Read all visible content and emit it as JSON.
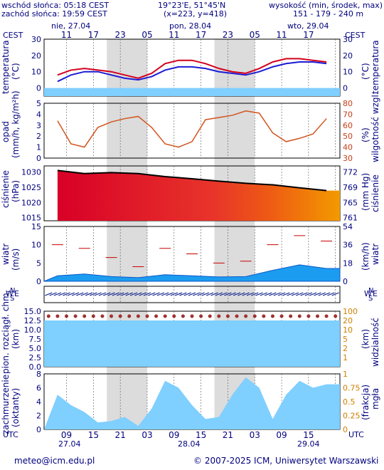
{
  "header": {
    "sunrise": "wschód słońca: 05:18 CEST",
    "sunset": "zachód słońca: 19:59 CEST",
    "coords": "19°23'E, 51°45'N",
    "grid": "(x=223, y=418)",
    "height_title": "wysokość (min, środek, max)",
    "height_values": "151 - 179 - 240 m"
  },
  "top_axis": {
    "tz": "CEST",
    "days": [
      "nie, 27.04",
      "pon, 28.04",
      "wto, 29.04"
    ],
    "hours": [
      "11",
      "17",
      "23",
      "05",
      "11",
      "17",
      "23",
      "05",
      "11",
      "17"
    ]
  },
  "bottom_axis": {
    "tz": "UTC",
    "days": [
      "27.04",
      "28.04",
      "29.04"
    ],
    "hours": [
      "09",
      "15",
      "21",
      "03",
      "09",
      "15",
      "21",
      "03",
      "09",
      "15"
    ]
  },
  "footer": {
    "email": "meteo@icm.edu.pl",
    "copyright": "© 2007-2025 ICM, Uniwersytet Warszawski"
  },
  "panels": {
    "temperature": {
      "left_label": "temperatura",
      "left_unit": "(°C)",
      "right_label": "temperatura",
      "right_unit": "(°C)",
      "ticks": [
        "30",
        "20",
        "10",
        "0"
      ]
    },
    "precip": {
      "left_label": "opad",
      "left_unit": "(mm/h, kg/m²h)",
      "right_label": "wilgotność wzgl.",
      "right_unit": "(%)",
      "left_ticks": [
        "5",
        "4",
        "3",
        "2",
        "1",
        "0"
      ],
      "right_ticks": [
        "80",
        "70",
        "60",
        "50",
        "40",
        "30"
      ]
    },
    "pressure": {
      "left_label": "ciśnienie",
      "left_unit": "(hPa)",
      "right_label": "ciśnienie",
      "right_unit": "(mm Hg)",
      "left_ticks": [
        "1030",
        "1025",
        "1020",
        "1015"
      ],
      "right_ticks": [
        "772",
        "769",
        "765",
        "761"
      ]
    },
    "wind": {
      "left_label": "wiatr",
      "left_unit": "(m/s)",
      "right_label": "wiatr",
      "right_unit": "(km/h)",
      "left_ticks": [
        "15",
        "10",
        "5",
        "0"
      ],
      "right_ticks": [
        "54",
        "36",
        "18",
        "0"
      ]
    },
    "winddir": {
      "compass_n": "N",
      "compass_s": "S",
      "compass_w": "W",
      "compass_e": "E"
    },
    "visibility": {
      "left_label": "pion. rozciągł. chm.",
      "left_unit": "(km)",
      "right_label": "widzialność",
      "right_unit": "(km)",
      "left_ticks": [
        "15.0",
        "12.5",
        "10.0",
        "7.5",
        "5.0",
        "2.5",
        "0.0"
      ],
      "right_ticks": [
        "100",
        "20",
        "10",
        "5",
        "2",
        "1"
      ]
    },
    "clouds": {
      "left_label": "zachmurzenie",
      "left_unit": "(oktanty)",
      "right_label": "mgła",
      "right_unit": "(frakcja)",
      "left_ticks": [
        "8",
        "6",
        "4",
        "2",
        "0"
      ],
      "right_ticks": [
        "1",
        "0.75",
        "0.5",
        "0.25",
        "0"
      ]
    }
  },
  "colors": {
    "axis_text": "#00007f",
    "night_band": "#dcdcdc",
    "temp_line": "#d4001c",
    "dew_line": "#1c1cd4",
    "precip_area": "#7fcfff",
    "humidity_line": "#d2541e",
    "pressure_fill_start": "#d80028",
    "pressure_fill_end": "#f08a00",
    "wind_fill": "#1c9cf0",
    "wind_fill_light": "#46e0f0",
    "gust_line": "#c80000",
    "cloud_fill": "#7fcfff"
  },
  "chart_data": [
    {
      "type": "line",
      "name": "temperature",
      "x_hours_cest": [
        9,
        12,
        15,
        18,
        21,
        24,
        27,
        30,
        33,
        36,
        39,
        42,
        45,
        48,
        51,
        54,
        57,
        60,
        63,
        66,
        69
      ],
      "temperature": [
        8,
        11,
        12,
        11,
        10,
        8,
        6,
        9,
        15,
        17,
        17,
        15,
        12,
        10,
        9,
        12,
        16,
        18,
        18,
        17,
        16
      ],
      "dew_point": [
        4,
        8,
        10,
        10,
        8,
        6,
        5,
        7,
        11,
        13,
        13,
        12,
        10,
        9,
        8,
        10,
        13,
        15,
        16,
        16,
        15
      ],
      "ylim": [
        -5,
        30
      ]
    },
    {
      "type": "line",
      "name": "humidity",
      "x_hours_cest": [
        9,
        12,
        15,
        18,
        21,
        24,
        27,
        30,
        33,
        36,
        39,
        42,
        45,
        48,
        51,
        54,
        57,
        60,
        63,
        66,
        69
      ],
      "humidity_pct": [
        64,
        43,
        40,
        58,
        63,
        66,
        68,
        58,
        43,
        40,
        45,
        65,
        67,
        69,
        73,
        71,
        53,
        45,
        48,
        52,
        66
      ],
      "precip": [
        0,
        0,
        0,
        0,
        0,
        0,
        0,
        0,
        0,
        0,
        0,
        0,
        0,
        0,
        0,
        0,
        0,
        0,
        0,
        0,
        0
      ],
      "ylim": [
        0,
        5
      ]
    },
    {
      "type": "area",
      "name": "pressure",
      "x_hours_cest": [
        9,
        15,
        21,
        27,
        33,
        39,
        45,
        51,
        57,
        63,
        69
      ],
      "pressure_hpa": [
        1030.5,
        1029.5,
        1029.8,
        1029.5,
        1028.5,
        1027.8,
        1027,
        1026.3,
        1025.8,
        1024.8,
        1023.9
      ],
      "ylim": [
        1014,
        1032
      ]
    },
    {
      "type": "line",
      "name": "wind",
      "x_hours_cest": [
        9,
        15,
        21,
        27,
        33,
        39,
        45,
        51,
        57,
        63,
        69
      ],
      "wind_ms": [
        1.5,
        2,
        1.3,
        1,
        1.8,
        1.5,
        1.2,
        1.3,
        3,
        4.5,
        3.5
      ],
      "gust_ms": [
        10,
        9,
        6.5,
        4,
        9,
        7.5,
        5,
        5.5,
        10,
        12.5,
        11
      ],
      "ylim": [
        0,
        15
      ]
    },
    {
      "type": "area",
      "name": "clouds",
      "x_hours_cest": [
        9,
        12,
        15,
        18,
        21,
        24,
        27,
        30,
        33,
        36,
        39,
        42,
        45,
        48,
        51,
        54,
        57,
        60,
        63,
        66,
        69
      ],
      "cloud_octants": [
        5,
        3.5,
        2.5,
        1,
        1.2,
        1.8,
        0.5,
        3,
        7,
        6,
        3.5,
        1.5,
        1.8,
        5,
        7.5,
        6,
        1.5,
        5,
        7,
        6,
        6.5
      ],
      "ylim": [
        0,
        8
      ]
    }
  ]
}
